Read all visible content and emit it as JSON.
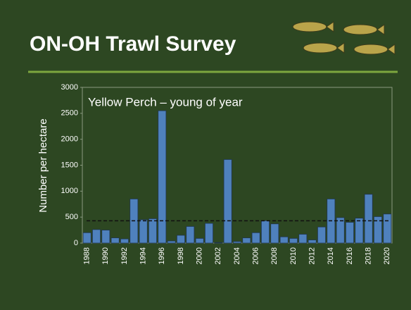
{
  "header": {
    "title": "ON-OH Trawl Survey"
  },
  "chart_data": {
    "type": "bar",
    "annotation": "Yellow Perch – young of year",
    "y_label": "Number per hectare",
    "categories": [
      "1988",
      null,
      "1990",
      null,
      "1992",
      null,
      "1994",
      null,
      "1996",
      null,
      "1998",
      null,
      "2000",
      null,
      "2002",
      null,
      "2004",
      null,
      "2006",
      null,
      "2008",
      null,
      "2010",
      null,
      "2012",
      null,
      "2014",
      null,
      "2016",
      null,
      "2018",
      null,
      "2020"
    ],
    "values": [
      200,
      260,
      250,
      100,
      80,
      850,
      450,
      470,
      2550,
      40,
      150,
      320,
      90,
      380,
      10,
      1610,
      30,
      100,
      200,
      430,
      370,
      120,
      90,
      170,
      60,
      310,
      850,
      490,
      400,
      480,
      940,
      510,
      560
    ],
    "color": "#4f81bd",
    "mean_line": 430,
    "ylim": [
      0,
      3000
    ],
    "yticks": [
      0,
      500,
      1000,
      1500,
      2000,
      2500,
      3000
    ],
    "grid": false
  }
}
